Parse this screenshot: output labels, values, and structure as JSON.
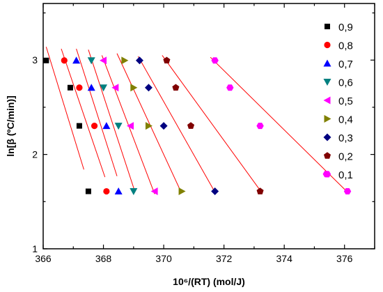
{
  "chart_data": {
    "type": "scatter",
    "title": "",
    "xlabel": "10⁶/(RT) (mol/J)",
    "ylabel": "ln[β (ºC/min)]",
    "xlim": [
      366,
      377
    ],
    "ylim": [
      1,
      3.6
    ],
    "xticks": [
      "366",
      "368",
      "370",
      "372",
      "374",
      "376"
    ],
    "yticks": [
      "1",
      "2",
      "3"
    ],
    "grid": false,
    "legend_position": "top-right",
    "fit_line_color": "#ff0000",
    "y_levels": [
      2.996,
      2.708,
      2.303,
      1.609
    ],
    "series": [
      {
        "name": "0,9",
        "marker": "square",
        "color": "#000000",
        "points": [
          [
            366.1,
            2.996
          ],
          [
            366.9,
            2.708
          ],
          [
            367.2,
            2.303
          ],
          [
            367.5,
            1.609
          ]
        ],
        "fit": [
          [
            366.1,
            3.14
          ],
          [
            367.35,
            1.84
          ]
        ]
      },
      {
        "name": "0,8",
        "marker": "circle",
        "color": "#ff0000",
        "points": [
          [
            366.7,
            2.996
          ],
          [
            367.2,
            2.708
          ],
          [
            367.7,
            2.303
          ],
          [
            368.1,
            1.609
          ]
        ],
        "fit": [
          [
            366.6,
            3.12
          ],
          [
            368.05,
            1.76
          ]
        ]
      },
      {
        "name": "0,7",
        "marker": "triangle-up",
        "color": "#0000ff",
        "points": [
          [
            367.1,
            2.996
          ],
          [
            367.6,
            2.708
          ],
          [
            368.1,
            2.303
          ],
          [
            368.5,
            1.609
          ]
        ],
        "fit": [
          [
            367.1,
            3.12
          ],
          [
            368.45,
            1.77
          ]
        ]
      },
      {
        "name": "0,6",
        "marker": "triangle-down",
        "color": "#008080",
        "points": [
          [
            367.6,
            2.996
          ],
          [
            368.0,
            2.708
          ],
          [
            368.5,
            2.303
          ],
          [
            369.0,
            1.609
          ]
        ],
        "fit": [
          [
            367.5,
            3.11
          ],
          [
            369.05,
            1.6
          ]
        ]
      },
      {
        "name": "0,5",
        "marker": "triangle-left",
        "color": "#ff00ff",
        "points": [
          [
            368.0,
            2.996
          ],
          [
            368.4,
            2.708
          ],
          [
            368.9,
            2.303
          ],
          [
            369.7,
            1.609
          ]
        ],
        "fit": [
          [
            367.95,
            3.05
          ],
          [
            369.7,
            1.58
          ]
        ]
      },
      {
        "name": "0,4",
        "marker": "triangle-right",
        "color": "#808000",
        "points": [
          [
            368.7,
            2.996
          ],
          [
            369.0,
            2.708
          ],
          [
            369.5,
            2.303
          ],
          [
            370.6,
            1.609
          ]
        ],
        "fit": [
          [
            368.45,
            3.07
          ],
          [
            370.55,
            1.62
          ]
        ]
      },
      {
        "name": "0,3",
        "marker": "diamond",
        "color": "#000080",
        "points": [
          [
            369.2,
            2.996
          ],
          [
            369.5,
            2.708
          ],
          [
            370.0,
            2.303
          ],
          [
            371.7,
            1.609
          ]
        ],
        "fit": [
          [
            369.15,
            3.04
          ],
          [
            371.7,
            1.6
          ]
        ]
      },
      {
        "name": "0,2",
        "marker": "pentagon",
        "color": "#800000",
        "points": [
          [
            370.1,
            2.996
          ],
          [
            370.4,
            2.708
          ],
          [
            370.9,
            2.303
          ],
          [
            373.2,
            1.609
          ]
        ],
        "fit": [
          [
            369.95,
            3.05
          ],
          [
            373.2,
            1.62
          ]
        ]
      },
      {
        "name": "0,1",
        "marker": "hexagon",
        "color": "#ff00ff",
        "points": [
          [
            371.7,
            2.996
          ],
          [
            372.2,
            2.708
          ],
          [
            373.2,
            2.303
          ],
          [
            375.4,
            1.792
          ],
          [
            376.1,
            1.609
          ]
        ],
        "fit": [
          [
            371.55,
            3.03
          ],
          [
            376.1,
            1.6
          ]
        ]
      }
    ]
  }
}
